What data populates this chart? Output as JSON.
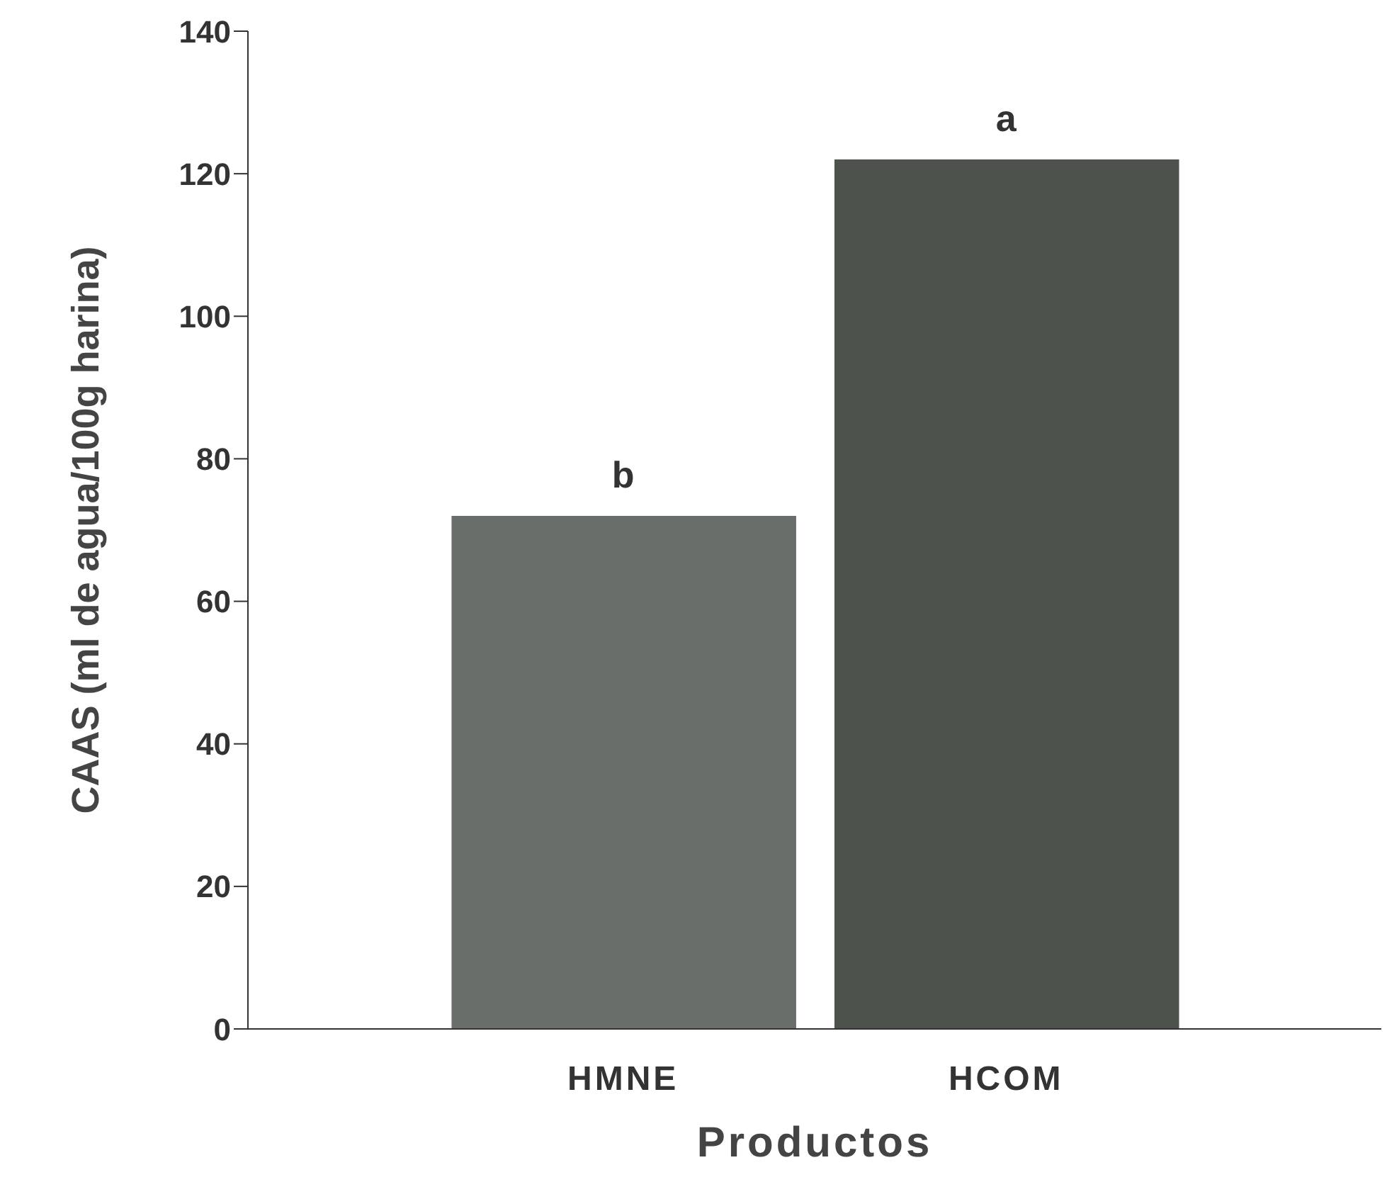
{
  "chart_data": {
    "type": "bar",
    "xlabel": "Productos",
    "ylabel": "CAAS (ml de agua/100g harina)",
    "categories": [
      "HMNE",
      "HCOM"
    ],
    "values": [
      72,
      122
    ],
    "colors": [
      "#6a6e6a",
      "#4d524d"
    ],
    "ylim": [
      0,
      140
    ],
    "yticks": [
      0,
      20,
      40,
      60,
      80,
      100,
      120,
      140
    ],
    "grid": false,
    "legend": false,
    "annotations": [
      {
        "text": "b",
        "x": "HMNE",
        "y": 72
      },
      {
        "text": "a",
        "x": "HCOM",
        "y": 122
      }
    ]
  }
}
